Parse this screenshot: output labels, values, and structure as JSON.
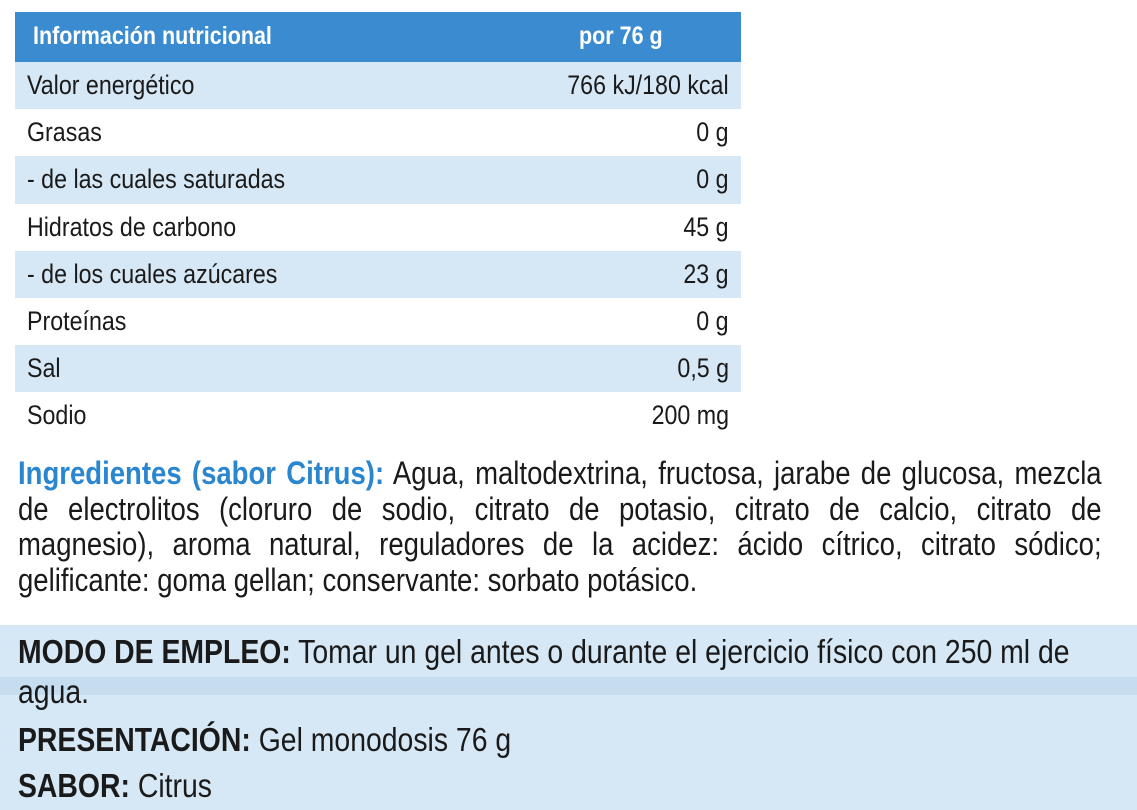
{
  "nutrition": {
    "header_label": "Información nutricional",
    "header_per": "por 76 g",
    "rows": [
      {
        "label": "Valor energético",
        "value": "766 kJ/180 kcal"
      },
      {
        "label": "Grasas",
        "value": "0 g"
      },
      {
        "label": "- de las cuales saturadas",
        "value": "0 g"
      },
      {
        "label": "Hidratos de carbono",
        "value": "45 g"
      },
      {
        "label": "- de los cuales azúcares",
        "value": "23 g"
      },
      {
        "label": "Proteínas",
        "value": "0 g"
      },
      {
        "label": "Sal",
        "value": "0,5 g"
      },
      {
        "label": "Sodio",
        "value": "200 mg"
      }
    ]
  },
  "ingredients": {
    "title": "Ingredientes (sabor Citrus):",
    "text": " Agua, maltodextrina, fructosa, jarabe de glucosa, mezcla de electrolitos (cloruro de sodio, citrato de potasio, citrato de calcio, citrato de magnesio), aroma natural, reguladores de la acidez: ácido cítrico, citrato sódico; gelificante: goma gellan; conservante: sorbato potásico."
  },
  "usage": {
    "title": "MODO DE EMPLEO:",
    "text": " Tomar un gel antes o durante el ejercicio físico con 250 ml de agua."
  },
  "presentation": {
    "title": "PRESENTACIÓN:",
    "text": " Gel monodosis 76 g"
  },
  "flavor": {
    "title": "SABOR:",
    "text": " Citrus"
  },
  "colors": {
    "header_blue": "#3a8bcf",
    "row_shade": "#d6e8f6",
    "ingredients_title": "#2a86cf"
  }
}
